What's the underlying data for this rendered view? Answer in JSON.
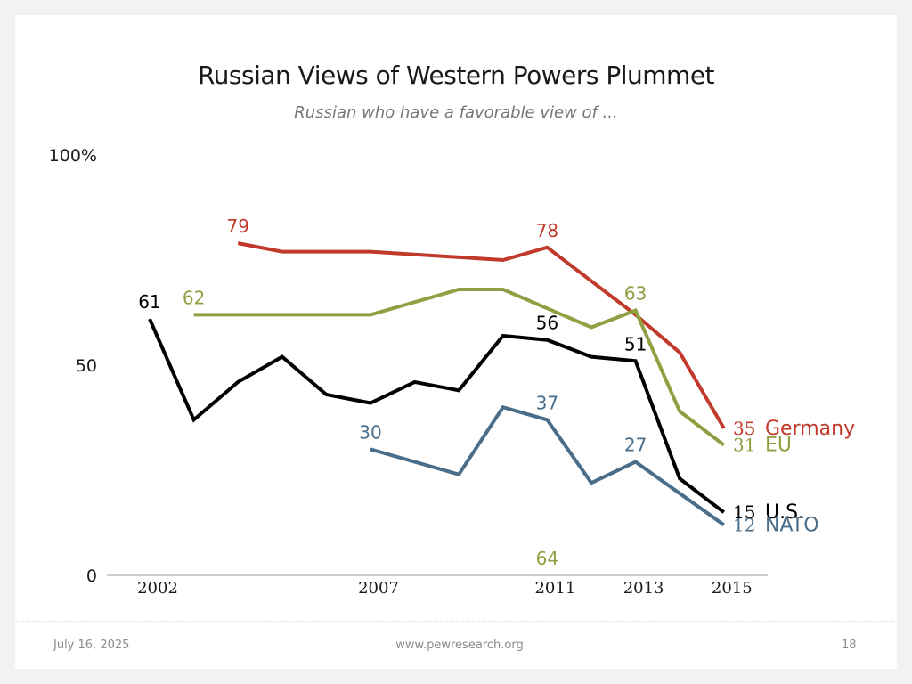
{
  "slide": {
    "title": "Russian Views of Western Powers Plummet",
    "subtitle": "Russian who have a favorable view of ...",
    "footer_date": "July 16, 2025",
    "footer_url": "www.pewresearch.org",
    "page_number": "18"
  },
  "chart_data": {
    "type": "line",
    "title": "Russian Views of Western Powers Plummet",
    "subtitle": "Russian who have a favorable view of ...",
    "xlabel": "",
    "ylabel": "",
    "xlim": [
      2002,
      2015
    ],
    "ylim": [
      0,
      100
    ],
    "y_ticks": [
      {
        "value": 0,
        "label": "0"
      },
      {
        "value": 50,
        "label": "50"
      },
      {
        "value": 100,
        "label": "100%"
      }
    ],
    "x_ticks": [
      {
        "value": 2002,
        "label": "2002"
      },
      {
        "value": 2007,
        "label": "2007"
      },
      {
        "value": 2011,
        "label": "2011"
      },
      {
        "value": 2013,
        "label": "2013"
      },
      {
        "value": 2015,
        "label": "2015"
      }
    ],
    "grid": false,
    "legend": "right-end labels",
    "series": [
      {
        "name": "Germany",
        "color": "#c0392b",
        "points": [
          [
            2004,
            79
          ],
          [
            2005,
            77
          ],
          [
            2007,
            77
          ],
          [
            2010,
            75
          ],
          [
            2011,
            78
          ],
          [
            2013,
            62
          ],
          [
            2014,
            53
          ],
          [
            2015,
            35
          ]
        ],
        "labels": [
          {
            "x": 2004,
            "text": "79",
            "pos": "above"
          },
          {
            "x": 2011,
            "text": "78",
            "pos": "above"
          }
        ],
        "end_value": "35"
      },
      {
        "name": "EU",
        "color": "#8fa043",
        "points": [
          [
            2003,
            62
          ],
          [
            2007,
            62
          ],
          [
            2009,
            68
          ],
          [
            2010,
            68
          ],
          [
            2012,
            59
          ],
          [
            2013,
            63
          ],
          [
            2014,
            39
          ],
          [
            2015,
            31
          ]
        ],
        "labels": [
          {
            "x": 2003,
            "text": "62",
            "pos": "above"
          },
          {
            "x": 2011,
            "text": "64",
            "pos": "above"
          },
          {
            "x": 2013,
            "text": "63",
            "pos": "above"
          }
        ],
        "end_value": "31"
      },
      {
        "name": "U.S.",
        "color": "#000000",
        "points": [
          [
            2002,
            61
          ],
          [
            2003,
            37
          ],
          [
            2004,
            46
          ],
          [
            2005,
            52
          ],
          [
            2006,
            43
          ],
          [
            2007,
            41
          ],
          [
            2008,
            46
          ],
          [
            2009,
            44
          ],
          [
            2010,
            57
          ],
          [
            2011,
            56
          ],
          [
            2012,
            52
          ],
          [
            2013,
            51
          ],
          [
            2014,
            23
          ],
          [
            2015,
            15
          ]
        ],
        "labels": [
          {
            "x": 2002,
            "text": "61",
            "pos": "above"
          },
          {
            "x": 2011,
            "text": "56",
            "pos": "above"
          },
          {
            "x": 2013,
            "text": "51",
            "pos": "above"
          }
        ],
        "end_value": "15"
      },
      {
        "name": "NATO",
        "color": "#4a6e8a",
        "points": [
          [
            2007,
            30
          ],
          [
            2009,
            24
          ],
          [
            2010,
            40
          ],
          [
            2011,
            37
          ],
          [
            2012,
            22
          ],
          [
            2013,
            27
          ],
          [
            2015,
            12
          ]
        ],
        "labels": [
          {
            "x": 2007,
            "text": "30",
            "pos": "above"
          },
          {
            "x": 2011,
            "text": "37",
            "pos": "above"
          },
          {
            "x": 2013,
            "text": "27",
            "pos": "above"
          }
        ],
        "end_value": "12"
      }
    ]
  }
}
